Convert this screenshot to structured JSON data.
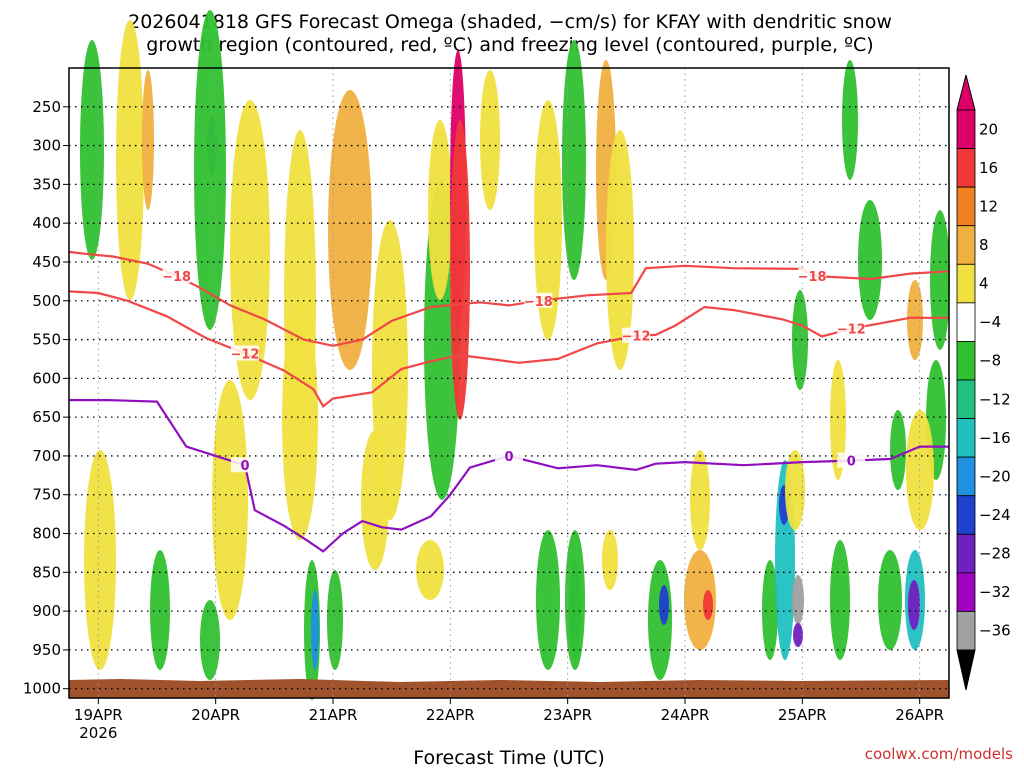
{
  "chart_data": {
    "type": "heatmap",
    "title_line1": "2026041818 GFS Forecast Omega (shaded, −cm/s) for KFAY with dendritic snow",
    "title_line2": "growth region (contoured, red, ºC) and freezing level (contoured, purple, ºC)",
    "xlabel": "Forecast Time (UTC)",
    "credit": "coolwx.com/models",
    "x_ticks": [
      {
        "label": "19APR",
        "sub": "2026",
        "hours": 6
      },
      {
        "label": "20APR",
        "sub": "",
        "hours": 30
      },
      {
        "label": "21APR",
        "sub": "",
        "hours": 54
      },
      {
        "label": "22APR",
        "sub": "",
        "hours": 78
      },
      {
        "label": "23APR",
        "sub": "",
        "hours": 102
      },
      {
        "label": "24APR",
        "sub": "",
        "hours": 126
      },
      {
        "label": "25APR",
        "sub": "",
        "hours": 150
      },
      {
        "label": "26APR",
        "sub": "",
        "hours": 174
      }
    ],
    "x_range_hours": [
      0,
      180
    ],
    "y_levels_hpa": [
      250,
      300,
      350,
      400,
      450,
      500,
      550,
      600,
      650,
      700,
      750,
      800,
      850,
      900,
      950,
      1000
    ],
    "y_range_hpa": [
      200,
      1012
    ],
    "colorbar": {
      "labels": [
        "20",
        "16",
        "12",
        "8",
        "4",
        "−4",
        "−8",
        "−12",
        "−16",
        "−20",
        "−24",
        "−28",
        "−32",
        "−36"
      ],
      "colors": [
        "#dd0068",
        "#f03838",
        "#f08020",
        "#f0b040",
        "#f0e040",
        "#ffffff",
        "#30c030",
        "#20c080",
        "#20c0c0",
        "#2090e0",
        "#2040d0",
        "#7020c0",
        "#a000c0",
        "#a0a0a0"
      ]
    },
    "series": [
      {
        "name": "-18",
        "color": "#f04848",
        "label": "−18",
        "points": [
          [
            0,
            437
          ],
          [
            4,
            440
          ],
          [
            9,
            443
          ],
          [
            16,
            452
          ],
          [
            22,
            468
          ],
          [
            27,
            484
          ],
          [
            33,
            506
          ],
          [
            40,
            524
          ],
          [
            48,
            550
          ],
          [
            54,
            558
          ],
          [
            60,
            550
          ],
          [
            66,
            526
          ],
          [
            74,
            508
          ],
          [
            84,
            502
          ],
          [
            90,
            506
          ],
          [
            96,
            500
          ],
          [
            106,
            493
          ],
          [
            115,
            490
          ],
          [
            118,
            458
          ],
          [
            126,
            455
          ],
          [
            136,
            458
          ],
          [
            150,
            459
          ],
          [
            152,
            468
          ],
          [
            164,
            472
          ],
          [
            172,
            465
          ],
          [
            180,
            462
          ]
        ]
      },
      {
        "name": "-12",
        "color": "#f04848",
        "label": "−12",
        "points": [
          [
            0,
            488
          ],
          [
            6,
            490
          ],
          [
            12,
            500
          ],
          [
            20,
            520
          ],
          [
            28,
            548
          ],
          [
            36,
            568
          ],
          [
            44,
            590
          ],
          [
            50,
            614
          ],
          [
            52,
            636
          ],
          [
            54,
            626
          ],
          [
            62,
            618
          ],
          [
            68,
            588
          ],
          [
            74,
            578
          ],
          [
            80,
            570
          ],
          [
            86,
            575
          ],
          [
            92,
            580
          ],
          [
            100,
            575
          ],
          [
            108,
            555
          ],
          [
            116,
            545
          ],
          [
            120,
            544
          ],
          [
            124,
            532
          ],
          [
            130,
            508
          ],
          [
            136,
            512
          ],
          [
            146,
            524
          ],
          [
            150,
            532
          ],
          [
            154,
            546
          ],
          [
            160,
            536
          ],
          [
            166,
            529
          ],
          [
            172,
            522
          ],
          [
            180,
            522
          ]
        ]
      },
      {
        "name": "0",
        "color": "#9010c0",
        "label": "0",
        "points": [
          [
            0,
            628
          ],
          [
            8,
            628
          ],
          [
            18,
            630
          ],
          [
            24,
            688
          ],
          [
            30,
            700
          ],
          [
            36,
            712
          ],
          [
            38,
            770
          ],
          [
            44,
            790
          ],
          [
            48,
            806
          ],
          [
            52,
            823
          ],
          [
            56,
            800
          ],
          [
            60,
            784
          ],
          [
            64,
            792
          ],
          [
            68,
            795
          ],
          [
            74,
            778
          ],
          [
            78,
            750
          ],
          [
            82,
            715
          ],
          [
            90,
            700
          ],
          [
            100,
            716
          ],
          [
            108,
            712
          ],
          [
            116,
            718
          ],
          [
            120,
            710
          ],
          [
            126,
            708
          ],
          [
            138,
            712
          ],
          [
            150,
            708
          ],
          [
            160,
            706
          ],
          [
            168,
            704
          ],
          [
            174,
            688
          ],
          [
            180,
            688
          ]
        ]
      }
    ]
  }
}
